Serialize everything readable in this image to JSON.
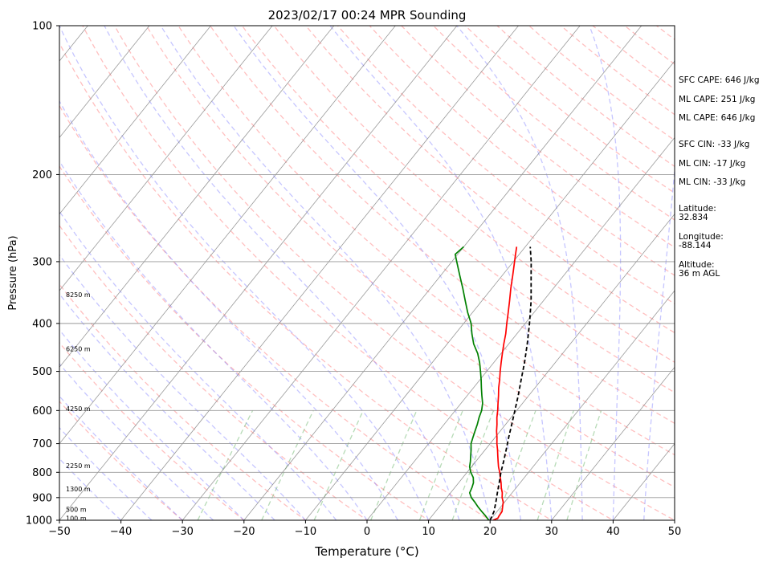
{
  "chart_data": {
    "type": "line",
    "title": "2023/02/17 00:24 MPR Sounding",
    "xlabel": "Temperature (°C)",
    "ylabel": "Pressure (hPa)",
    "xlim": [
      -50,
      50
    ],
    "ylim": [
      1000,
      100
    ],
    "y_scale": "log",
    "grid": true,
    "x_ticks": [
      "−50",
      "−40",
      "−30",
      "−20",
      "−10",
      "0",
      "10",
      "20",
      "30",
      "40",
      "50"
    ],
    "x_tick_values": [
      -50,
      -40,
      -30,
      -20,
      -10,
      0,
      10,
      20,
      30,
      40,
      50
    ],
    "y_ticks": [
      "100",
      "200",
      "300",
      "400",
      "500",
      "600",
      "700",
      "800",
      "900",
      "1000"
    ],
    "y_tick_values": [
      100,
      200,
      300,
      400,
      500,
      600,
      700,
      800,
      900,
      1000
    ],
    "series": [
      {
        "color": "#ff0000",
        "points": [
          [
            1000,
            20.5
          ],
          [
            990,
            21.0
          ],
          [
            980,
            20.9
          ],
          [
            960,
            20.8
          ],
          [
            940,
            20.3
          ],
          [
            920,
            19.8
          ],
          [
            900,
            19.0
          ],
          [
            880,
            18.4
          ],
          [
            860,
            17.6
          ],
          [
            840,
            16.9
          ],
          [
            820,
            16.1
          ],
          [
            800,
            15.3
          ],
          [
            780,
            14.4
          ],
          [
            760,
            13.6
          ],
          [
            740,
            12.8
          ],
          [
            720,
            12.0
          ],
          [
            700,
            11.1
          ],
          [
            680,
            10.3
          ],
          [
            660,
            9.4
          ],
          [
            640,
            8.6
          ],
          [
            620,
            7.7
          ],
          [
            600,
            6.9
          ],
          [
            580,
            6.0
          ],
          [
            560,
            5.1
          ],
          [
            540,
            4.1
          ],
          [
            520,
            3.2
          ],
          [
            500,
            2.2
          ],
          [
            480,
            1.2
          ],
          [
            460,
            0.2
          ],
          [
            440,
            -0.8
          ],
          [
            420,
            -1.8
          ],
          [
            400,
            -3.0
          ],
          [
            380,
            -4.2
          ],
          [
            360,
            -5.5
          ],
          [
            340,
            -6.9
          ],
          [
            320,
            -8.3
          ],
          [
            300,
            -9.8
          ],
          [
            290,
            -10.6
          ],
          [
            280,
            -11.4
          ]
        ]
      },
      {
        "color": "#008000",
        "points": [
          [
            1000,
            19.8
          ],
          [
            980,
            18.7
          ],
          [
            960,
            17.5
          ],
          [
            940,
            16.3
          ],
          [
            920,
            15.2
          ],
          [
            900,
            14.0
          ],
          [
            880,
            13.1
          ],
          [
            860,
            12.8
          ],
          [
            840,
            12.4
          ],
          [
            820,
            11.7
          ],
          [
            800,
            10.6
          ],
          [
            780,
            9.7
          ],
          [
            760,
            9.1
          ],
          [
            740,
            8.4
          ],
          [
            720,
            7.7
          ],
          [
            700,
            6.9
          ],
          [
            680,
            6.4
          ],
          [
            660,
            5.9
          ],
          [
            640,
            5.4
          ],
          [
            620,
            4.8
          ],
          [
            600,
            4.3
          ],
          [
            580,
            3.5
          ],
          [
            560,
            2.4
          ],
          [
            540,
            1.3
          ],
          [
            520,
            0.2
          ],
          [
            500,
            -1.0
          ],
          [
            480,
            -2.3
          ],
          [
            460,
            -3.8
          ],
          [
            440,
            -5.7
          ],
          [
            420,
            -7.3
          ],
          [
            400,
            -8.8
          ],
          [
            380,
            -10.8
          ],
          [
            360,
            -12.7
          ],
          [
            340,
            -14.7
          ],
          [
            320,
            -16.9
          ],
          [
            300,
            -19.2
          ],
          [
            290,
            -20.4
          ],
          [
            280,
            -20.0
          ]
        ]
      },
      {
        "color": "#000000",
        "dashed": true,
        "points": [
          [
            1000,
            20.0
          ],
          [
            960,
            19.5
          ],
          [
            920,
            18.6
          ],
          [
            880,
            17.6
          ],
          [
            840,
            16.6
          ],
          [
            800,
            15.5
          ],
          [
            760,
            14.5
          ],
          [
            720,
            13.4
          ],
          [
            680,
            12.2
          ],
          [
            640,
            11.0
          ],
          [
            600,
            9.7
          ],
          [
            560,
            8.3
          ],
          [
            520,
            6.7
          ],
          [
            480,
            5.0
          ],
          [
            440,
            3.0
          ],
          [
            400,
            0.7
          ],
          [
            360,
            -2.0
          ],
          [
            320,
            -5.3
          ],
          [
            300,
            -7.1
          ],
          [
            280,
            -9.2
          ]
        ]
      }
    ],
    "height_labels": [
      "8250 m",
      "6250 m",
      "4250 m",
      "2250 m",
      "1300 m",
      "500 m",
      "100 m"
    ],
    "height_label_pressures": [
      350,
      450,
      595,
      775,
      865,
      950,
      990
    ]
  },
  "side_info": {
    "sfc_cape": "SFC CAPE: 646 J/kg",
    "ml_cape_1": "ML CAPE: 251 J/kg",
    "ml_cape_2": "ML CAPE: 646 J/kg",
    "sfc_cin": "SFC CIN: -33 J/kg",
    "ml_cin_1": "ML CIN: -17 J/kg",
    "ml_cin_2": "ML CIN: -33 J/kg",
    "latitude": "Latitude:\n32.834",
    "longitude": "Longitude:\n-88.144",
    "altitude": "Altitude:\n36 m AGL"
  },
  "colors": {
    "temperature": "#ff0000",
    "dewpoint": "#008000",
    "parcel": "#000000",
    "dry_adiabat": "#ff8080",
    "moist_adiabat": "#8080ff",
    "mixing_ratio": "#60b060",
    "isotherm": "#808080"
  }
}
